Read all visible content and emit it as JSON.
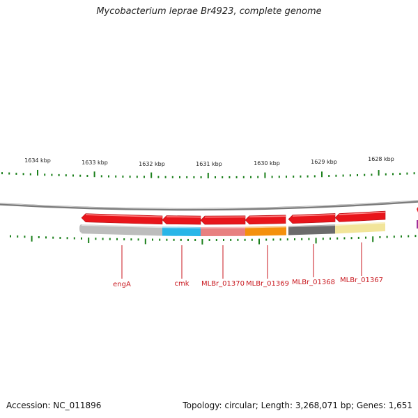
{
  "header": {
    "title": "Mycobacterium leprae Br4923, complete genome"
  },
  "footer": {
    "accession": "Accession: NC_011896",
    "topology": "Topology: circular; Length: 3,268,071 bp; Genes: 1,651"
  },
  "ruler": {
    "labels": [
      "1634 kbp",
      "1633 kbp",
      "1632 kbp",
      "1631 kbp",
      "1630 kbp",
      "1629 kbp",
      "1628 kbp"
    ],
    "tick_color": "#1a7f1a"
  },
  "genes": [
    {
      "name": "engA",
      "color": "#bdbdbd"
    },
    {
      "name": "cmk",
      "color": "#29b6e8"
    },
    {
      "name": "MLBr_01370",
      "color": "#e88080"
    },
    {
      "name": "MLBr_01369",
      "color": "#f4900c"
    },
    {
      "name": "MLBr_01368",
      "color": "#6b6b6b"
    },
    {
      "name": "MLBr_01367",
      "color": "#f2e59a"
    }
  ],
  "colors": {
    "arrow": "#e8151b",
    "label": "#c8161d",
    "backbone": "#7a7a7a"
  }
}
